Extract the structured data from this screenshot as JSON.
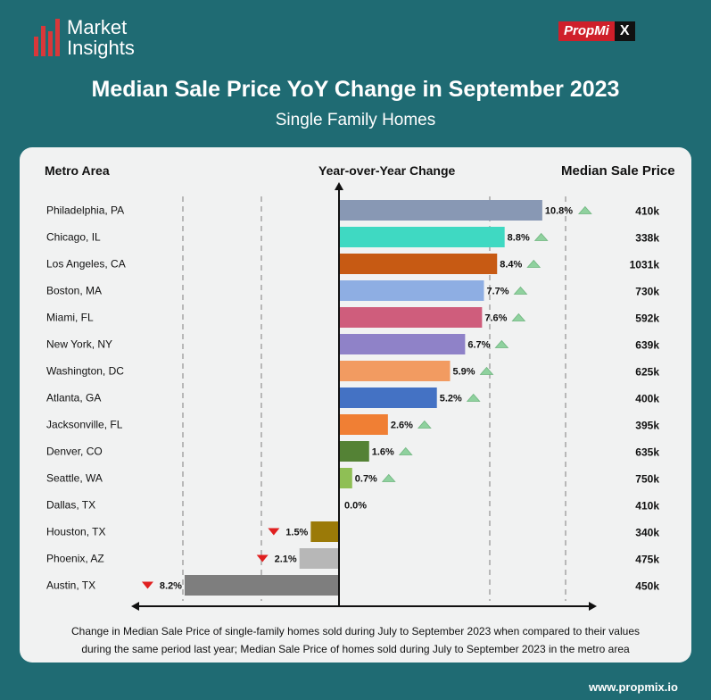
{
  "header": {
    "logo_line1": "Market",
    "logo_line2": "Insights",
    "brand_prefix": "PropMi",
    "brand_suffix": "X",
    "title": "Median Sale Price YoY Change in September 2023",
    "subtitle": "Single Family Homes"
  },
  "table": {
    "col_metro": "Metro Area",
    "col_change": "Year-over-Year Change",
    "col_price": "Median Sale Price"
  },
  "chart_data": {
    "type": "bar",
    "orientation": "horizontal",
    "categories": [
      "Philadelphia, PA",
      "Chicago, IL",
      "Los Angeles, CA",
      "Boston, MA",
      "Miami, FL",
      "New York, NY",
      "Washington, DC",
      "Atlanta, GA",
      "Jacksonville, FL",
      "Denver, CO",
      "Seattle, WA",
      "Dallas, TX",
      "Houston, TX",
      "Phoenix, AZ",
      "Austin, TX"
    ],
    "values": [
      10.8,
      8.8,
      8.4,
      7.7,
      7.6,
      6.7,
      5.9,
      5.2,
      2.6,
      1.6,
      0.7,
      0.0,
      -1.5,
      -2.1,
      -8.2
    ],
    "value_labels": [
      "10.8%",
      "8.8%",
      "8.4%",
      "7.7%",
      "7.6%",
      "6.7%",
      "5.9%",
      "5.2%",
      "2.6%",
      "1.6%",
      "0.7%",
      "0.0%",
      "1.5%",
      "2.1%",
      "8.2%"
    ],
    "median_prices": [
      "410k",
      "338k",
      "1031k",
      "730k",
      "592k",
      "639k",
      "625k",
      "400k",
      "395k",
      "635k",
      "750k",
      "410k",
      "340k",
      "475k",
      "450k"
    ],
    "colors": [
      "#8898b4",
      "#3fd9c2",
      "#c75a13",
      "#8eaee3",
      "#cf5d7c",
      "#8f82c8",
      "#f29b61",
      "#4472c4",
      "#f07f34",
      "#548235",
      "#8fbf55",
      "#999999",
      "#9b7a08",
      "#b7b7b7",
      "#7e7e7e"
    ],
    "xlim": [
      -8.2,
      10.8
    ],
    "up_color": "#8fd19e",
    "down_color": "#e02020"
  },
  "footnote": {
    "line1": "Change in Median Sale Price of single-family homes sold during July to September 2023 when compared to their values",
    "line2": "during the same period last year; Median Sale Price of homes sold during July to September 2023 in the metro area"
  },
  "website": "www.propmix.io"
}
